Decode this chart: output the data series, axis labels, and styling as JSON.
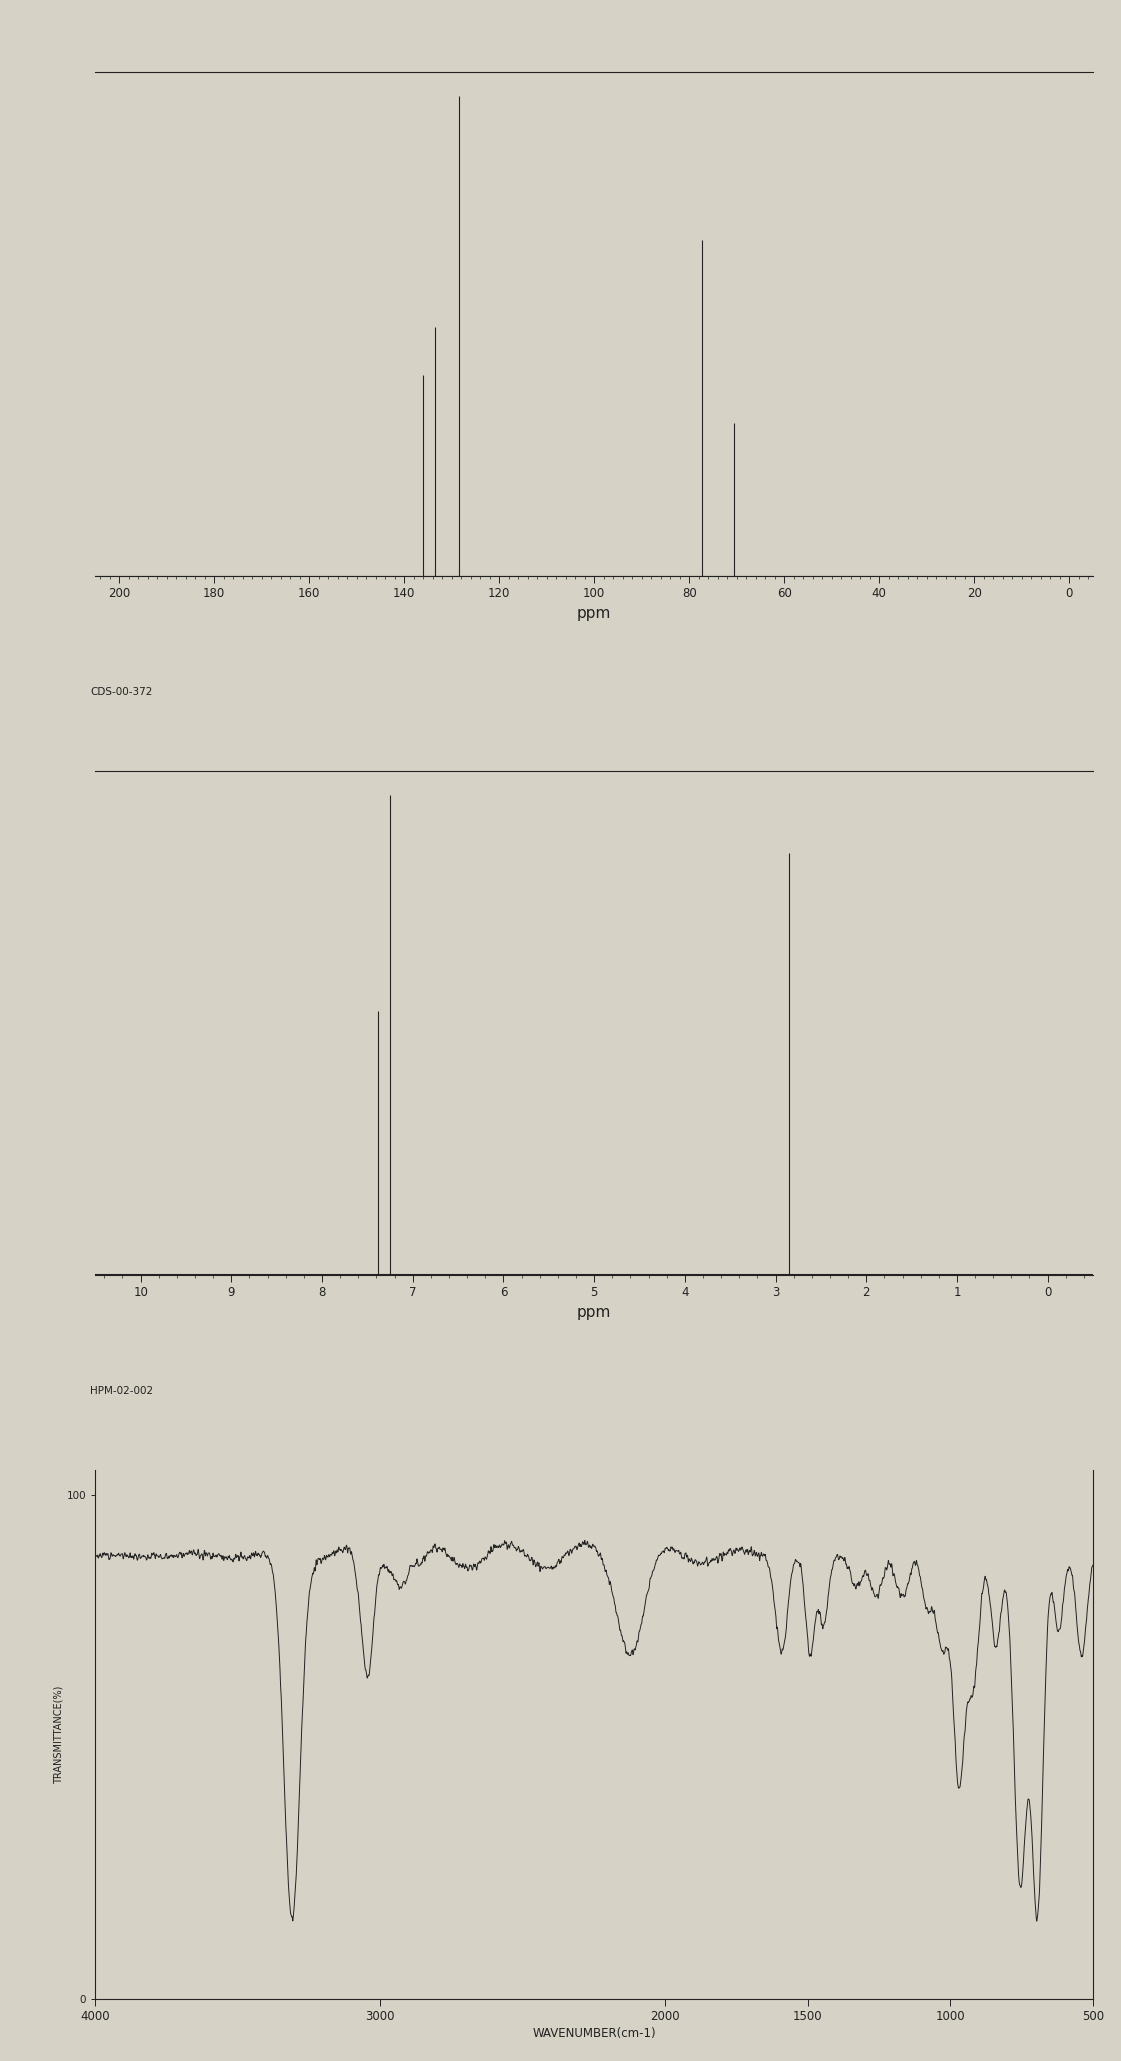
{
  "bg_color": "#d6d2c6",
  "line_color": "#222222",
  "cnmr": {
    "xlim": [
      205,
      -5
    ],
    "ylim": [
      0,
      1.05
    ],
    "xlabel": "ppm",
    "label": "CDS-00-372",
    "peaks": [
      {
        "ppm": 128.5,
        "height": 1.0
      },
      {
        "ppm": 133.5,
        "height": 0.52
      },
      {
        "ppm": 136.0,
        "height": 0.42
      },
      {
        "ppm": 77.2,
        "height": 0.7
      },
      {
        "ppm": 70.5,
        "height": 0.32
      }
    ],
    "xticks": [
      200,
      180,
      160,
      140,
      120,
      100,
      80,
      60,
      40,
      20,
      0
    ]
  },
  "hnmr": {
    "xlim": [
      10.5,
      -0.5
    ],
    "ylim": [
      0,
      1.05
    ],
    "xlabel": "ppm",
    "label": "HPM-02-002",
    "peaks": [
      {
        "ppm": 7.38,
        "height": 0.55
      },
      {
        "ppm": 7.25,
        "height": 1.0
      },
      {
        "ppm": 2.85,
        "height": 0.88
      }
    ],
    "xticks": [
      10,
      9,
      8,
      7,
      6,
      5,
      4,
      3,
      2,
      1,
      0
    ]
  },
  "ir": {
    "xlim": [
      4000,
      500
    ],
    "ylim": [
      0,
      105
    ],
    "ylabel": "TRANSMITTANCE(%)",
    "xlabel": "WAVENUMBER(cm-1)",
    "xticks": [
      4000,
      3000,
      2000,
      1500,
      1000,
      500
    ],
    "yticks_label": "100",
    "baseline_high": 88,
    "baseline_low": 2
  }
}
